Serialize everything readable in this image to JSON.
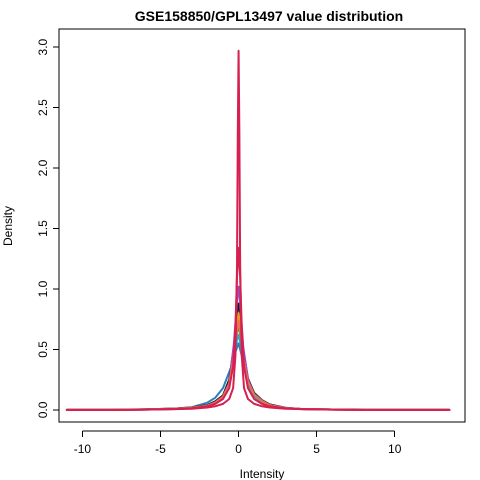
{
  "chart_data": {
    "type": "line",
    "title": "GSE158850/GPL13497 value distribution",
    "xlabel": "Intensity",
    "ylabel": "Density",
    "xlim": [
      -11.5,
      14.5
    ],
    "ylim": [
      -0.1,
      3.15
    ],
    "x_ticks": [
      {
        "value": -10,
        "label": "-10"
      },
      {
        "value": -5,
        "label": "-5"
      },
      {
        "value": 0,
        "label": "0"
      },
      {
        "value": 5,
        "label": "5"
      },
      {
        "value": 10,
        "label": "10"
      }
    ],
    "y_ticks": [
      {
        "value": 0.0,
        "label": "0.0"
      },
      {
        "value": 0.5,
        "label": "0.5"
      },
      {
        "value": 1.0,
        "label": "1.0"
      },
      {
        "value": 1.5,
        "label": "1.5"
      },
      {
        "value": 2.0,
        "label": "2.0"
      },
      {
        "value": 2.5,
        "label": "2.5"
      },
      {
        "value": 3.0,
        "label": "3.0"
      }
    ],
    "grid": false,
    "legend": "none",
    "series": [
      {
        "color": "#2c7fb8",
        "x": [
          -11,
          -9,
          -7,
          -5,
          -4,
          -3,
          -2,
          -1.5,
          -1,
          -0.7,
          -0.4,
          -0.2,
          0,
          0.2,
          0.4,
          0.7,
          1,
          1.5,
          2,
          3,
          4,
          6,
          8,
          10,
          13.5
        ],
        "y": [
          0.0,
          0.0,
          0.003,
          0.008,
          0.012,
          0.022,
          0.06,
          0.1,
          0.18,
          0.28,
          0.38,
          0.48,
          0.55,
          0.45,
          0.32,
          0.22,
          0.14,
          0.08,
          0.045,
          0.015,
          0.008,
          0.003,
          0.001,
          0.0,
          0.0
        ]
      },
      {
        "color": "#1a1a1a",
        "x": [
          -11,
          -8,
          -6,
          -4,
          -3,
          -2,
          -1.5,
          -1,
          -0.6,
          -0.3,
          -0.1,
          0,
          0.1,
          0.3,
          0.6,
          1,
          1.5,
          2,
          3,
          4,
          6,
          8,
          10,
          13.5
        ],
        "y": [
          0.0,
          0.0,
          0.004,
          0.012,
          0.02,
          0.04,
          0.07,
          0.12,
          0.25,
          0.52,
          0.8,
          0.88,
          0.78,
          0.5,
          0.26,
          0.14,
          0.08,
          0.045,
          0.018,
          0.008,
          0.003,
          0.001,
          0.0,
          0.0
        ]
      },
      {
        "color": "#e6a020",
        "x": [
          -11,
          -8,
          -6,
          -4,
          -3,
          -2,
          -1.5,
          -1,
          -0.6,
          -0.3,
          -0.1,
          0,
          0.1,
          0.3,
          0.6,
          1,
          1.5,
          2,
          3,
          4,
          6,
          8,
          10,
          13.5
        ],
        "y": [
          0.0,
          0.0,
          0.003,
          0.01,
          0.018,
          0.035,
          0.06,
          0.11,
          0.22,
          0.48,
          0.72,
          0.8,
          0.7,
          0.46,
          0.24,
          0.13,
          0.075,
          0.04,
          0.016,
          0.007,
          0.003,
          0.001,
          0.0,
          0.0
        ]
      },
      {
        "color": "#2ca02c",
        "x": [
          -11,
          -8,
          -6,
          -4,
          -3,
          -2,
          -1.5,
          -1,
          -0.6,
          -0.3,
          -0.1,
          0,
          0.1,
          0.3,
          0.6,
          1,
          1.5,
          2,
          3,
          4,
          6,
          8,
          10,
          13.5
        ],
        "y": [
          0.0,
          0.0,
          0.003,
          0.01,
          0.017,
          0.033,
          0.058,
          0.105,
          0.21,
          0.44,
          0.64,
          0.7,
          0.62,
          0.42,
          0.22,
          0.12,
          0.07,
          0.038,
          0.015,
          0.007,
          0.003,
          0.001,
          0.0,
          0.0
        ]
      },
      {
        "color": "#9b4fc4",
        "x": [
          -11,
          -8,
          -6,
          -4,
          -3,
          -2,
          -1.5,
          -1,
          -0.6,
          -0.3,
          -0.1,
          0,
          0.1,
          0.3,
          0.6,
          1,
          1.5,
          2,
          3,
          4,
          6,
          8,
          10,
          13.5
        ],
        "y": [
          0.0,
          0.0,
          0.003,
          0.01,
          0.018,
          0.035,
          0.062,
          0.11,
          0.22,
          0.55,
          0.9,
          1.02,
          0.88,
          0.52,
          0.25,
          0.13,
          0.075,
          0.04,
          0.016,
          0.007,
          0.003,
          0.001,
          0.0,
          0.0
        ]
      },
      {
        "color": "#20b2c8",
        "x": [
          -11,
          -8,
          -6,
          -4,
          -3,
          -2,
          -1.5,
          -1,
          -0.6,
          -0.3,
          -0.1,
          0,
          0.1,
          0.3,
          0.6,
          1,
          1.5,
          2,
          3,
          4,
          6,
          7.5,
          8.5,
          10,
          13.5
        ],
        "y": [
          0.0,
          0.0,
          0.002,
          0.008,
          0.015,
          0.03,
          0.055,
          0.1,
          0.2,
          0.4,
          0.58,
          0.62,
          0.56,
          0.38,
          0.2,
          0.11,
          0.065,
          0.035,
          0.014,
          0.006,
          0.003,
          0.004,
          0.002,
          0.0,
          0.0
        ]
      },
      {
        "color": "#e8734a",
        "x": [
          -11,
          -8,
          -6,
          -4,
          -3,
          -2,
          -1.5,
          -1,
          -0.6,
          -0.3,
          -0.1,
          0,
          0.1,
          0.3,
          0.6,
          1,
          1.5,
          2,
          3,
          4,
          6,
          8,
          10,
          13.5
        ],
        "y": [
          0.0,
          0.0,
          0.003,
          0.01,
          0.018,
          0.034,
          0.06,
          0.105,
          0.21,
          0.45,
          0.66,
          0.74,
          0.64,
          0.43,
          0.23,
          0.125,
          0.072,
          0.039,
          0.015,
          0.007,
          0.003,
          0.001,
          0.0,
          0.0
        ]
      },
      {
        "color": "#d62050",
        "x": [
          -11,
          -8,
          -6,
          -4,
          -3,
          -2,
          -1.5,
          -1,
          -0.6,
          -0.35,
          -0.2,
          -0.1,
          -0.05,
          0,
          0.05,
          0.1,
          0.2,
          0.35,
          0.6,
          1,
          1.5,
          2,
          3,
          4,
          6,
          8,
          10,
          13.5
        ],
        "y": [
          0.0,
          0.0,
          0.002,
          0.006,
          0.01,
          0.02,
          0.03,
          0.05,
          0.09,
          0.18,
          0.45,
          1.2,
          2.3,
          2.97,
          2.3,
          1.2,
          0.45,
          0.18,
          0.09,
          0.05,
          0.03,
          0.02,
          0.01,
          0.006,
          0.002,
          0.0,
          0.0,
          0.0
        ]
      },
      {
        "color": "#d62050",
        "x": [
          -11,
          -8,
          -6,
          -4,
          -3,
          -2,
          -1.5,
          -1,
          -0.6,
          -0.35,
          -0.2,
          -0.1,
          0,
          0.1,
          0.2,
          0.35,
          0.6,
          1,
          1.5,
          2,
          3,
          4,
          6,
          8,
          10,
          13.5
        ],
        "y": [
          0.0,
          0.0,
          0.002,
          0.008,
          0.014,
          0.03,
          0.05,
          0.09,
          0.18,
          0.36,
          0.7,
          1.1,
          1.34,
          1.1,
          0.7,
          0.36,
          0.18,
          0.09,
          0.05,
          0.03,
          0.014,
          0.008,
          0.002,
          0.0,
          0.0,
          0.0
        ]
      }
    ]
  }
}
